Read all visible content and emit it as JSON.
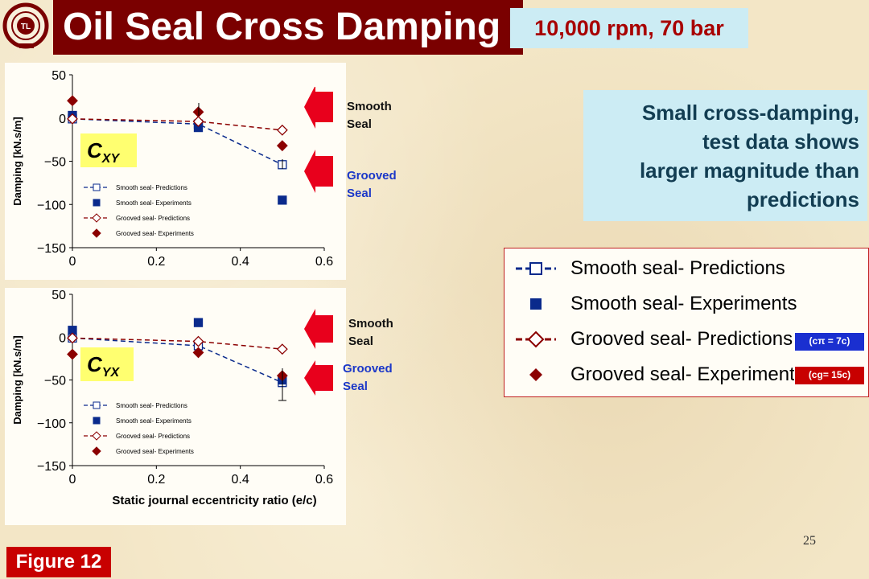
{
  "title": "Oil Seal Cross Damping",
  "operating_condition": "10,000 rpm, 70 bar",
  "summary_lines": [
    "Small cross-damping,",
    "test data shows",
    "larger magnitude than",
    "predictions"
  ],
  "seal_labels": {
    "smooth": [
      "Smooth",
      "Seal"
    ],
    "grooved": [
      "Grooved",
      "Seal"
    ]
  },
  "legend": {
    "items": [
      "Smooth seal- Predictions",
      "Smooth seal- Experiments",
      "Grooved seal- Predictions",
      "Grooved seal- Experiments"
    ],
    "clearance_smooth": "(cπ = 7c)",
    "clearance_grooved": "(cg= 15c)"
  },
  "colors": {
    "title_bg": "#7a0000",
    "smooth": "#0a2a8c",
    "grooved": "#8b0000",
    "callout_box": "#ccecf4",
    "label_box": "#ffff70",
    "arrow": "#e8001c"
  },
  "page_number": "25",
  "figure_label": "Figure 12",
  "chart_data": [
    {
      "type": "line",
      "label": "CXY",
      "ylabel": "Damping [kN.s/m]",
      "xlabel": "",
      "xlim": [
        0,
        0.6
      ],
      "ylim": [
        -150,
        50
      ],
      "xticks": [
        "0",
        "0.2",
        "0.4",
        "0.6"
      ],
      "yticks": [
        "50",
        "0",
        "-50",
        "-100",
        "-150"
      ],
      "legend": [
        "Smooth seal- Predictions",
        "Smooth seal- Experiments",
        "Grooved seal- Predictions",
        "Grooved seal- Experiments"
      ],
      "series": [
        {
          "name": "Smooth seal- Predictions",
          "style": "dashed-open-square",
          "color": "#0a2a8c",
          "x": [
            0,
            0.3,
            0.5
          ],
          "y": [
            -1,
            -7,
            -54
          ]
        },
        {
          "name": "Smooth seal- Experiments",
          "style": "filled-square",
          "color": "#0a2a8c",
          "x": [
            0,
            0.3,
            0.5
          ],
          "y": [
            3,
            -11,
            -95
          ]
        },
        {
          "name": "Grooved seal- Predictions",
          "style": "dashed-open-diamond",
          "color": "#8b0000",
          "x": [
            0,
            0.3,
            0.5
          ],
          "y": [
            -1,
            -4,
            -14
          ]
        },
        {
          "name": "Grooved seal- Experiments",
          "style": "filled-diamond",
          "color": "#8b0000",
          "x": [
            0,
            0.3,
            0.5
          ],
          "y": [
            20,
            7,
            -32
          ]
        }
      ]
    },
    {
      "type": "line",
      "label": "CYX",
      "ylabel": "Damping [kN.s/m]",
      "xlabel": "Static journal eccentricity ratio (e/c)",
      "xlim": [
        0,
        0.6
      ],
      "ylim": [
        -150,
        50
      ],
      "xticks": [
        "0",
        "0.2",
        "0.4",
        "0.6"
      ],
      "yticks": [
        "50",
        "0",
        "-50",
        "-100",
        "-150"
      ],
      "legend": [
        "Smooth seal- Predictions",
        "Smooth seal- Experiments",
        "Grooved seal- Predictions",
        "Grooved seal- Experiments"
      ],
      "series": [
        {
          "name": "Smooth seal- Predictions",
          "style": "dashed-open-square",
          "color": "#0a2a8c",
          "x": [
            0,
            0.3,
            0.5
          ],
          "y": [
            -1,
            -10,
            -53
          ]
        },
        {
          "name": "Smooth seal- Experiments",
          "style": "filled-square",
          "color": "#0a2a8c",
          "x": [
            0,
            0.3,
            0.5
          ],
          "y": [
            8,
            17,
            -50
          ]
        },
        {
          "name": "Grooved seal- Predictions",
          "style": "dashed-open-diamond",
          "color": "#8b0000",
          "x": [
            0,
            0.3,
            0.5
          ],
          "y": [
            -1,
            -5,
            -14
          ]
        },
        {
          "name": "Grooved seal- Experiments",
          "style": "filled-diamond",
          "color": "#8b0000",
          "x": [
            0,
            0.3,
            0.5
          ],
          "y": [
            -20,
            -18,
            -45
          ]
        }
      ]
    }
  ]
}
